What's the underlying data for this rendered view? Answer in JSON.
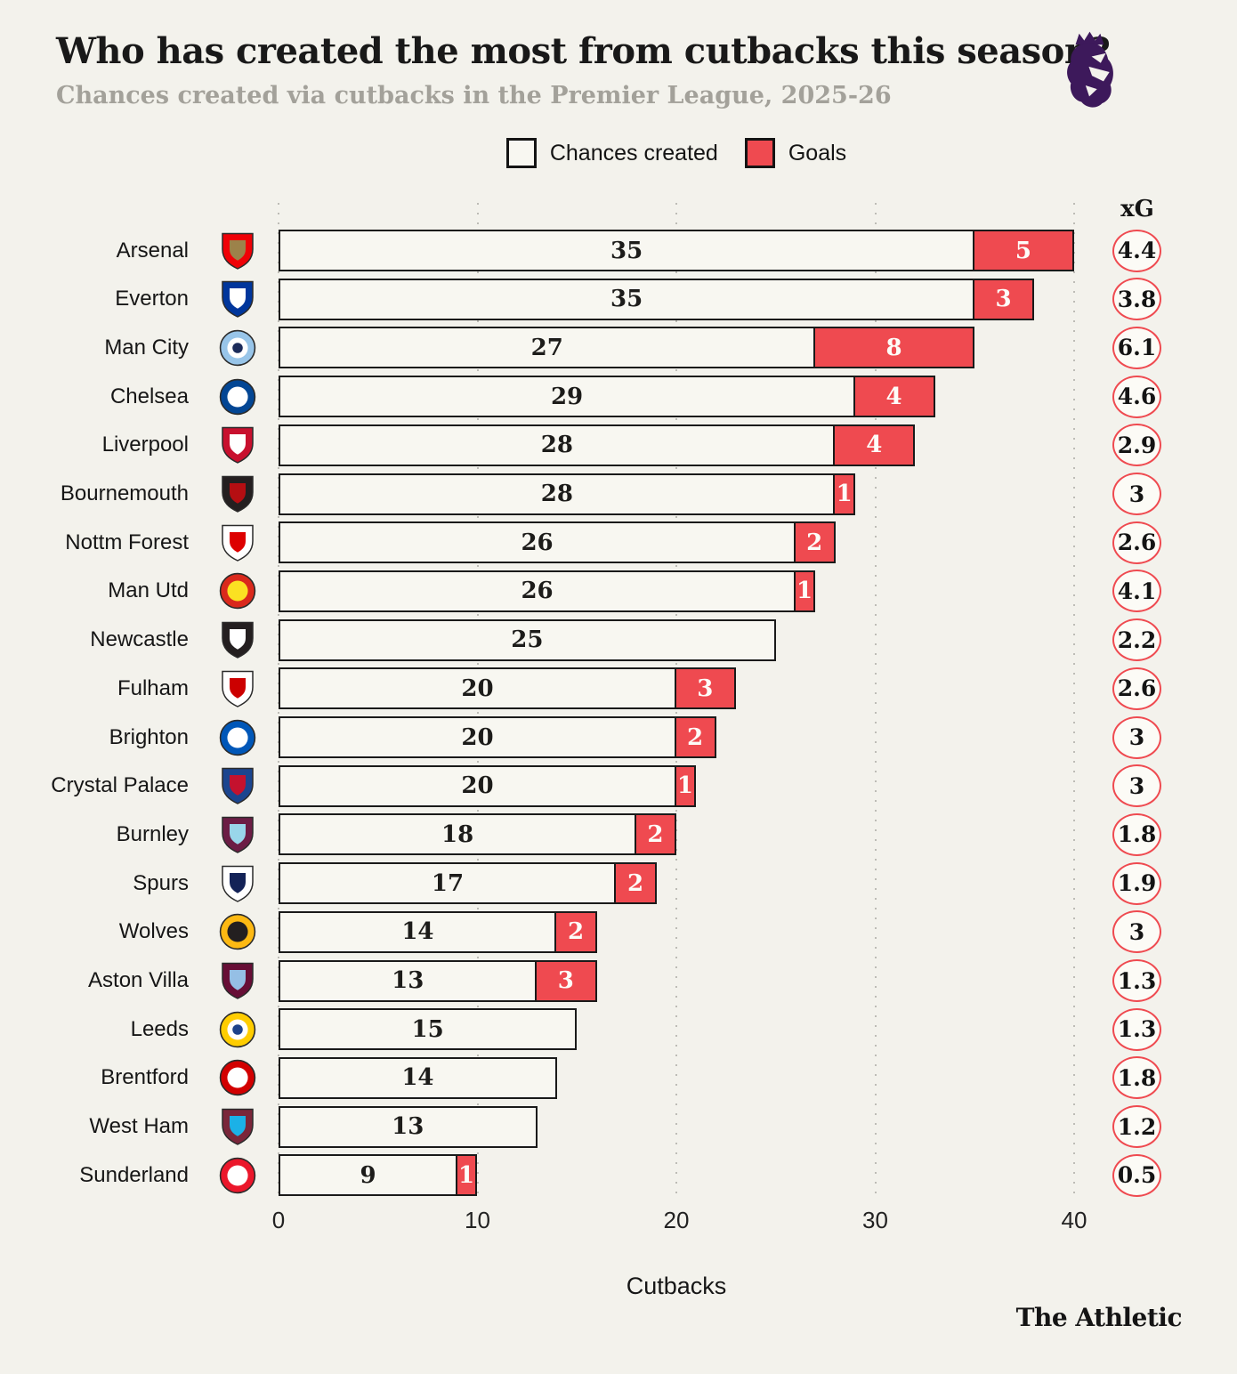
{
  "header": {
    "title": "Who has created the most from cutbacks this season?",
    "subtitle": "Chances created via cutbacks in the Premier League, 2025-26"
  },
  "legend": {
    "chances_label": "Chances created",
    "goals_label": "Goals"
  },
  "colors": {
    "background": "#f3f2ec",
    "bar_fill": "#f8f7f1",
    "bar_border": "#1a1a1a",
    "goals_red": "#ef4a50",
    "subtitle_gray": "#a3a19a",
    "grid_dot": "#bdbcb6",
    "premier_league_purple": "#3d195b"
  },
  "chart_data": {
    "type": "bar",
    "orientation": "horizontal",
    "stacked": true,
    "series_names": [
      "Chances created",
      "Goals"
    ],
    "xlabel": "Cutbacks",
    "xg_label": "xG",
    "xlim": [
      0,
      40
    ],
    "x_ticks": [
      0,
      10,
      20,
      30,
      40
    ],
    "grid": "dotted-vertical",
    "legend_position": "top-center",
    "teams": [
      {
        "name": "Arsenal",
        "chances": 35,
        "goals": 5,
        "xg": "4.4",
        "crest": {
          "shape": "shield",
          "colors": [
            "#EF0107",
            "#9C824A"
          ]
        }
      },
      {
        "name": "Everton",
        "chances": 35,
        "goals": 3,
        "xg": "3.8",
        "crest": {
          "shape": "shield",
          "colors": [
            "#00369C",
            "#FFFFFF"
          ]
        }
      },
      {
        "name": "Man City",
        "chances": 27,
        "goals": 8,
        "xg": "6.1",
        "crest": {
          "shape": "circle",
          "colors": [
            "#98C5E9",
            "#FFFFFF",
            "#1C2C5B"
          ]
        }
      },
      {
        "name": "Chelsea",
        "chances": 29,
        "goals": 4,
        "xg": "4.6",
        "crest": {
          "shape": "circle",
          "colors": [
            "#034694",
            "#FFFFFF"
          ]
        }
      },
      {
        "name": "Liverpool",
        "chances": 28,
        "goals": 4,
        "xg": "2.9",
        "crest": {
          "shape": "shield",
          "colors": [
            "#C8102E",
            "#FFFFFF"
          ]
        }
      },
      {
        "name": "Bournemouth",
        "chances": 28,
        "goals": 1,
        "xg": "3",
        "crest": {
          "shape": "shield",
          "colors": [
            "#241F20",
            "#B50E12"
          ]
        }
      },
      {
        "name": "Nottm Forest",
        "chances": 26,
        "goals": 2,
        "xg": "2.6",
        "crest": {
          "shape": "shield",
          "colors": [
            "#FFFFFF",
            "#DD0000"
          ]
        }
      },
      {
        "name": "Man Utd",
        "chances": 26,
        "goals": 1,
        "xg": "4.1",
        "crest": {
          "shape": "circle",
          "colors": [
            "#DA291C",
            "#FBE122"
          ]
        }
      },
      {
        "name": "Newcastle",
        "chances": 25,
        "goals": 0,
        "xg": "2.2",
        "crest": {
          "shape": "shield",
          "colors": [
            "#241F20",
            "#FFFFFF"
          ]
        }
      },
      {
        "name": "Fulham",
        "chances": 20,
        "goals": 3,
        "xg": "2.6",
        "crest": {
          "shape": "shield",
          "colors": [
            "#FFFFFF",
            "#CC0000"
          ]
        }
      },
      {
        "name": "Brighton",
        "chances": 20,
        "goals": 2,
        "xg": "3",
        "crest": {
          "shape": "circle",
          "colors": [
            "#0057B8",
            "#FFFFFF"
          ]
        }
      },
      {
        "name": "Crystal Palace",
        "chances": 20,
        "goals": 1,
        "xg": "3",
        "crest": {
          "shape": "shield",
          "colors": [
            "#1B458F",
            "#C4122E"
          ]
        }
      },
      {
        "name": "Burnley",
        "chances": 18,
        "goals": 2,
        "xg": "1.8",
        "crest": {
          "shape": "shield",
          "colors": [
            "#6C1D45",
            "#99D6EA"
          ]
        }
      },
      {
        "name": "Spurs",
        "chances": 17,
        "goals": 2,
        "xg": "1.9",
        "crest": {
          "shape": "shield",
          "colors": [
            "#FFFFFF",
            "#132257"
          ]
        }
      },
      {
        "name": "Wolves",
        "chances": 14,
        "goals": 2,
        "xg": "3",
        "crest": {
          "shape": "circle",
          "colors": [
            "#FDB913",
            "#231F20"
          ]
        }
      },
      {
        "name": "Aston Villa",
        "chances": 13,
        "goals": 3,
        "xg": "1.3",
        "crest": {
          "shape": "shield",
          "colors": [
            "#670E36",
            "#95BFE5"
          ]
        }
      },
      {
        "name": "Leeds",
        "chances": 15,
        "goals": 0,
        "xg": "1.3",
        "crest": {
          "shape": "circle",
          "colors": [
            "#FFCD00",
            "#FFFFFF",
            "#1D428A"
          ]
        }
      },
      {
        "name": "Brentford",
        "chances": 14,
        "goals": 0,
        "xg": "1.8",
        "crest": {
          "shape": "circle",
          "colors": [
            "#D20000",
            "#FFFFFF"
          ]
        }
      },
      {
        "name": "West Ham",
        "chances": 13,
        "goals": 0,
        "xg": "1.2",
        "crest": {
          "shape": "shield",
          "colors": [
            "#7A263A",
            "#1BB1E7"
          ]
        }
      },
      {
        "name": "Sunderland",
        "chances": 9,
        "goals": 1,
        "xg": "0.5",
        "crest": {
          "shape": "circle",
          "colors": [
            "#EB172B",
            "#FFFFFF"
          ]
        }
      }
    ]
  },
  "footer": {
    "brand": "The Athletic"
  }
}
